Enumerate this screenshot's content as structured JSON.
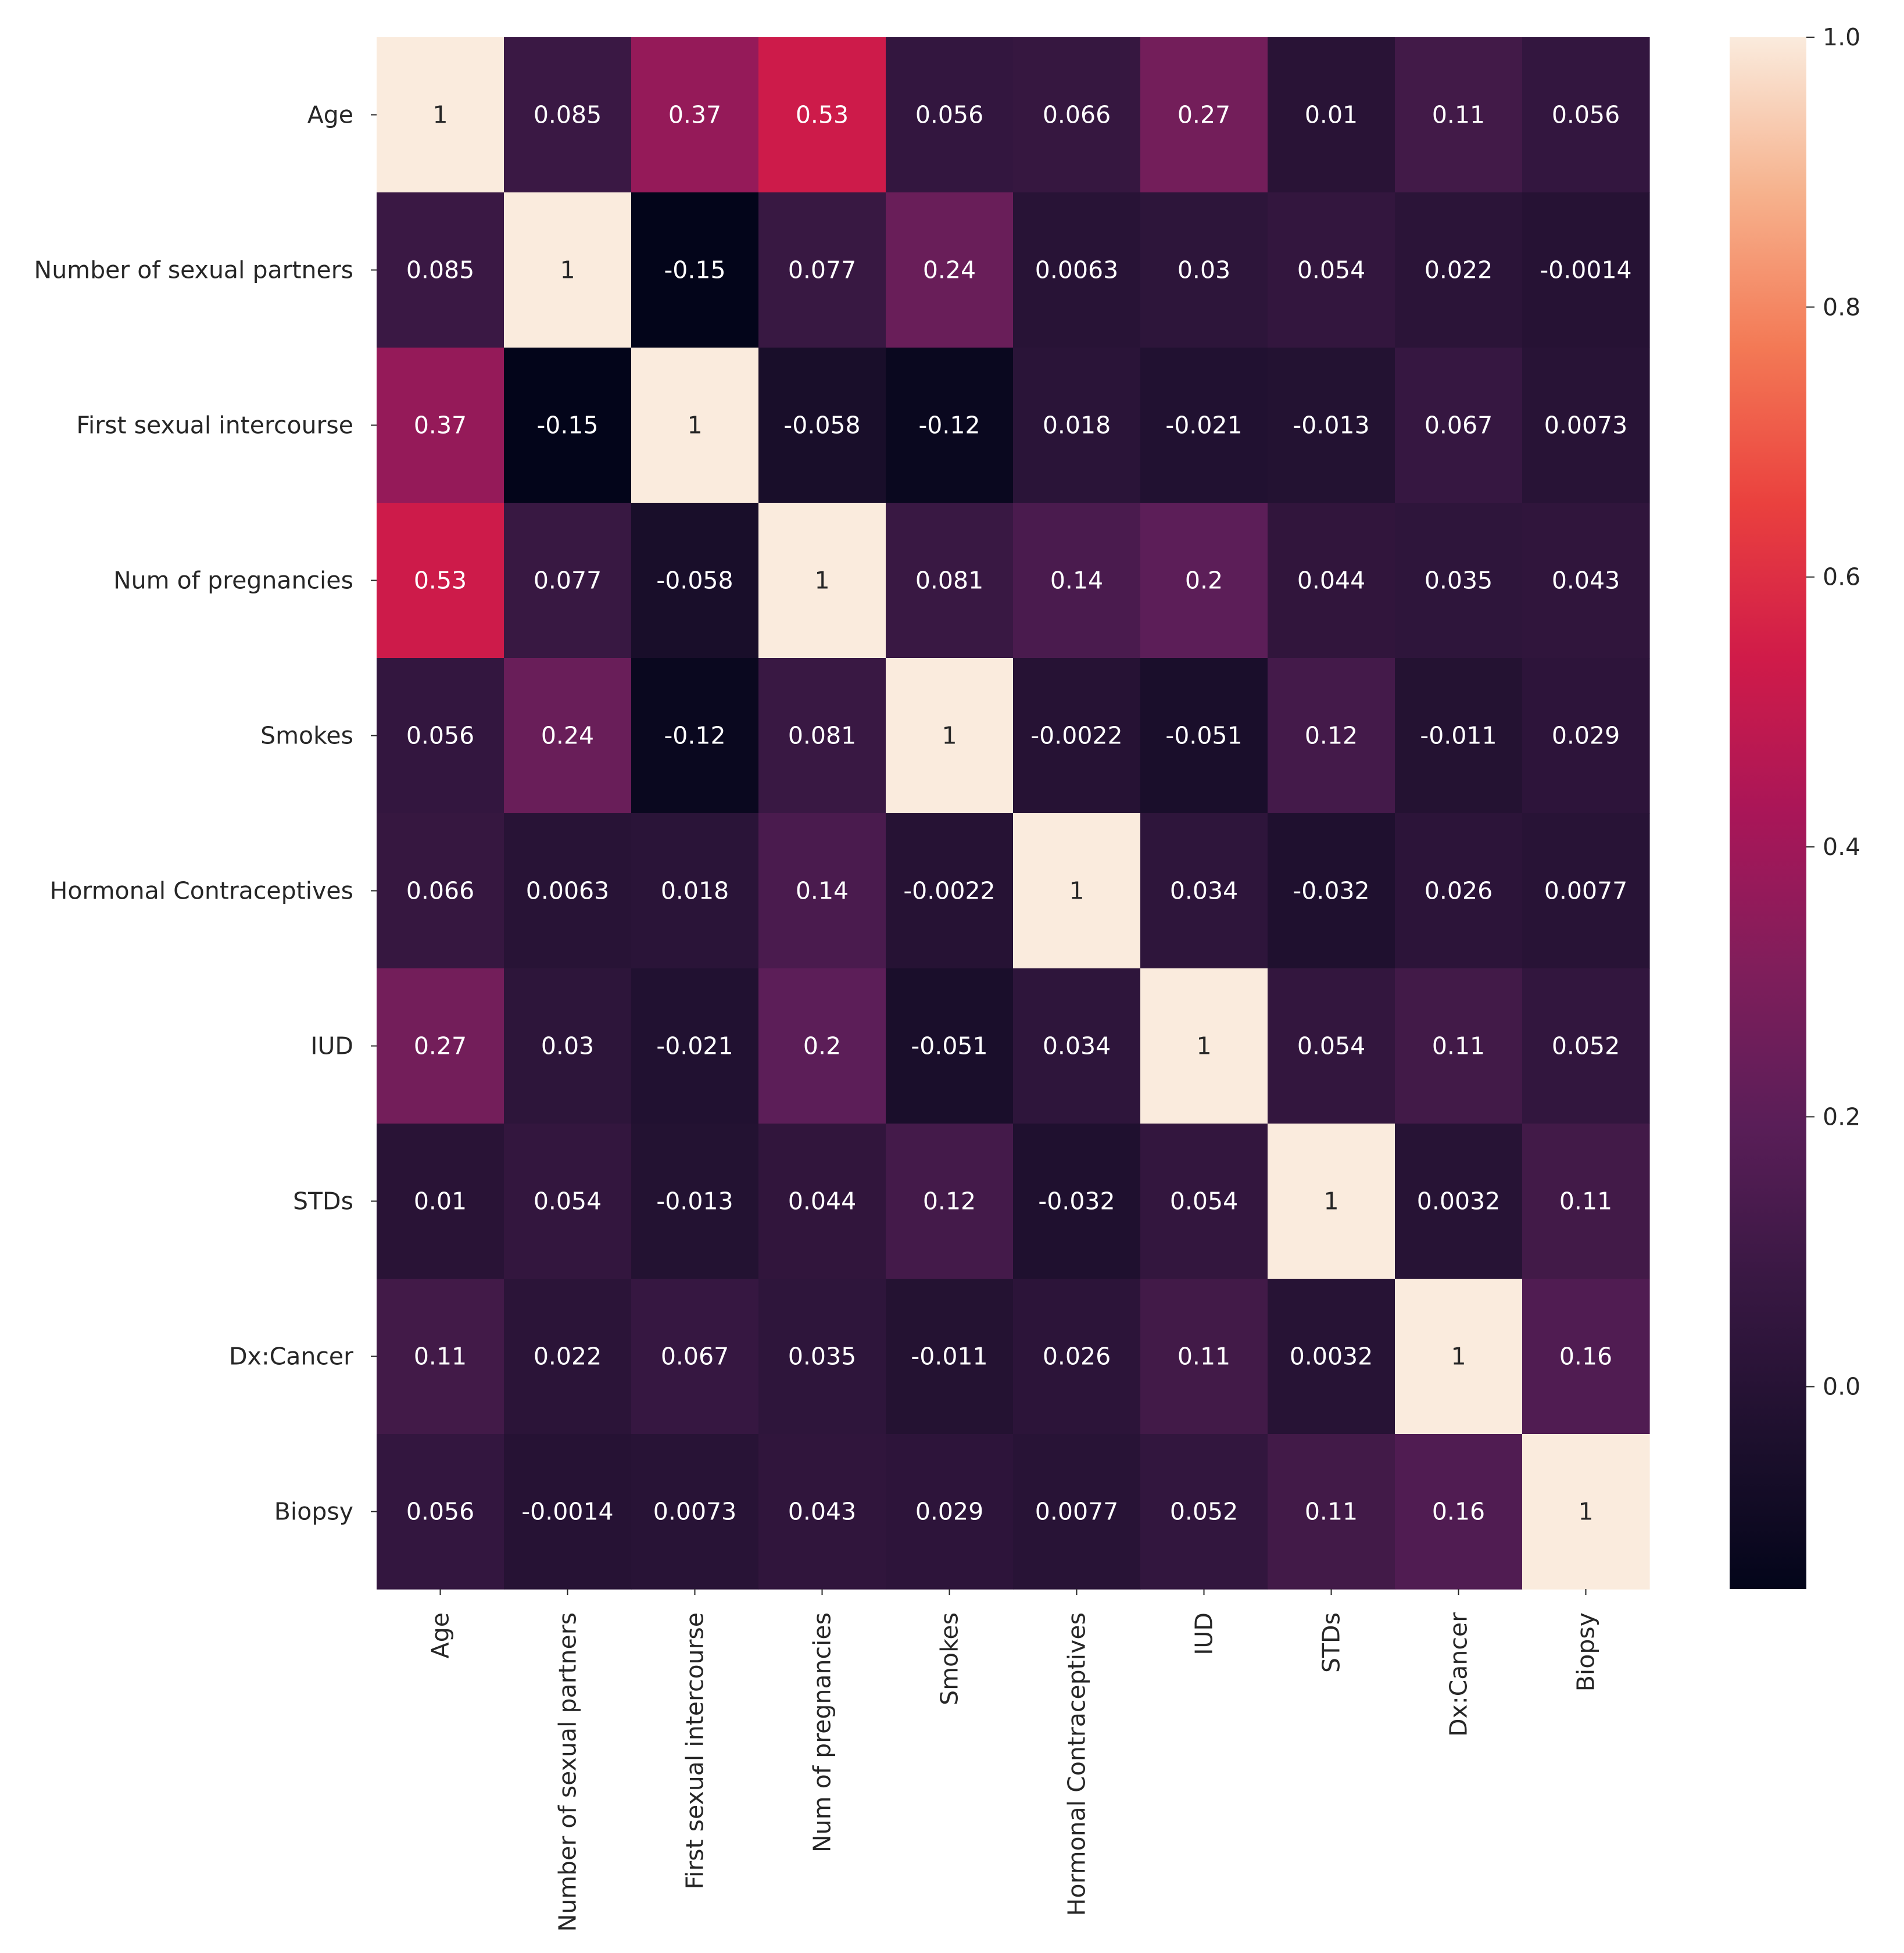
{
  "chart_data": {
    "type": "heatmap",
    "title": "",
    "xlabel": "",
    "ylabel": "",
    "labels": [
      "Age",
      "Number of sexual partners",
      "First sexual intercourse",
      "Num of pregnancies",
      "Smokes",
      "Hormonal Contraceptives",
      "IUD",
      "STDs",
      "Dx:Cancer",
      "Biopsy"
    ],
    "values": [
      [
        1,
        0.085,
        0.37,
        0.53,
        0.056,
        0.066,
        0.27,
        0.01,
        0.11,
        0.056
      ],
      [
        0.085,
        1,
        -0.15,
        0.077,
        0.24,
        0.0063,
        0.03,
        0.054,
        0.022,
        -0.0014
      ],
      [
        0.37,
        -0.15,
        1,
        -0.058,
        -0.12,
        0.018,
        -0.021,
        -0.013,
        0.067,
        0.0073
      ],
      [
        0.53,
        0.077,
        -0.058,
        1,
        0.081,
        0.14,
        0.2,
        0.044,
        0.035,
        0.043
      ],
      [
        0.056,
        0.24,
        -0.12,
        0.081,
        1,
        -0.0022,
        -0.051,
        0.12,
        -0.011,
        0.029
      ],
      [
        0.066,
        0.0063,
        0.018,
        0.14,
        -0.0022,
        1,
        0.034,
        -0.032,
        0.026,
        0.0077
      ],
      [
        0.27,
        0.03,
        -0.021,
        0.2,
        -0.051,
        0.034,
        1,
        0.054,
        0.11,
        0.052
      ],
      [
        0.01,
        0.054,
        -0.013,
        0.044,
        0.12,
        -0.032,
        0.054,
        1,
        0.0032,
        0.11
      ],
      [
        0.11,
        0.022,
        0.067,
        0.035,
        -0.011,
        0.026,
        0.11,
        0.0032,
        1,
        0.16
      ],
      [
        0.056,
        -0.0014,
        0.0073,
        0.043,
        0.029,
        0.0077,
        0.052,
        0.11,
        0.16,
        1
      ]
    ],
    "colorbar": {
      "min": -0.15,
      "max": 1.0,
      "ticks": [
        0.0,
        0.2,
        0.4,
        0.6,
        0.8,
        1.0
      ],
      "tick_labels": [
        "0.0",
        "0.2",
        "0.4",
        "0.6",
        "0.8",
        "1.0"
      ],
      "colormap": "rocket"
    },
    "annotations": true
  }
}
